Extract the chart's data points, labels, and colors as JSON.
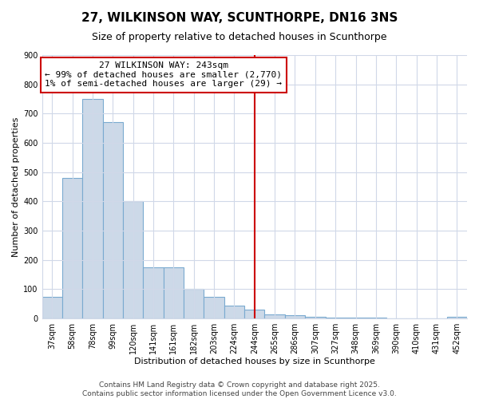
{
  "title1": "27, WILKINSON WAY, SCUNTHORPE, DN16 3NS",
  "title2": "Size of property relative to detached houses in Scunthorpe",
  "xlabel": "Distribution of detached houses by size in Scunthorpe",
  "ylabel": "Number of detached properties",
  "categories": [
    "37sqm",
    "58sqm",
    "78sqm",
    "99sqm",
    "120sqm",
    "141sqm",
    "161sqm",
    "182sqm",
    "203sqm",
    "224sqm",
    "244sqm",
    "265sqm",
    "286sqm",
    "307sqm",
    "327sqm",
    "348sqm",
    "369sqm",
    "390sqm",
    "410sqm",
    "431sqm",
    "452sqm"
  ],
  "values": [
    75,
    480,
    750,
    670,
    400,
    175,
    175,
    100,
    75,
    45,
    30,
    15,
    10,
    5,
    3,
    3,
    2,
    0,
    0,
    0,
    5
  ],
  "bar_color": "#ccd9e8",
  "bar_edge_color": "#7aaad0",
  "vline_color": "#cc0000",
  "annotation_text": "27 WILKINSON WAY: 243sqm\n← 99% of detached houses are smaller (2,770)\n1% of semi-detached houses are larger (29) →",
  "annotation_box_color": "white",
  "annotation_box_edge_color": "#cc0000",
  "ylim": [
    0,
    900
  ],
  "yticks": [
    0,
    100,
    200,
    300,
    400,
    500,
    600,
    700,
    800,
    900
  ],
  "bg_color": "#ffffff",
  "grid_color": "#d0d8e8",
  "footer_text1": "Contains HM Land Registry data © Crown copyright and database right 2025.",
  "footer_text2": "Contains public sector information licensed under the Open Government Licence v3.0.",
  "title_fontsize": 11,
  "subtitle_fontsize": 9,
  "axis_label_fontsize": 8,
  "tick_fontsize": 7,
  "annotation_fontsize": 8,
  "footer_fontsize": 6.5
}
